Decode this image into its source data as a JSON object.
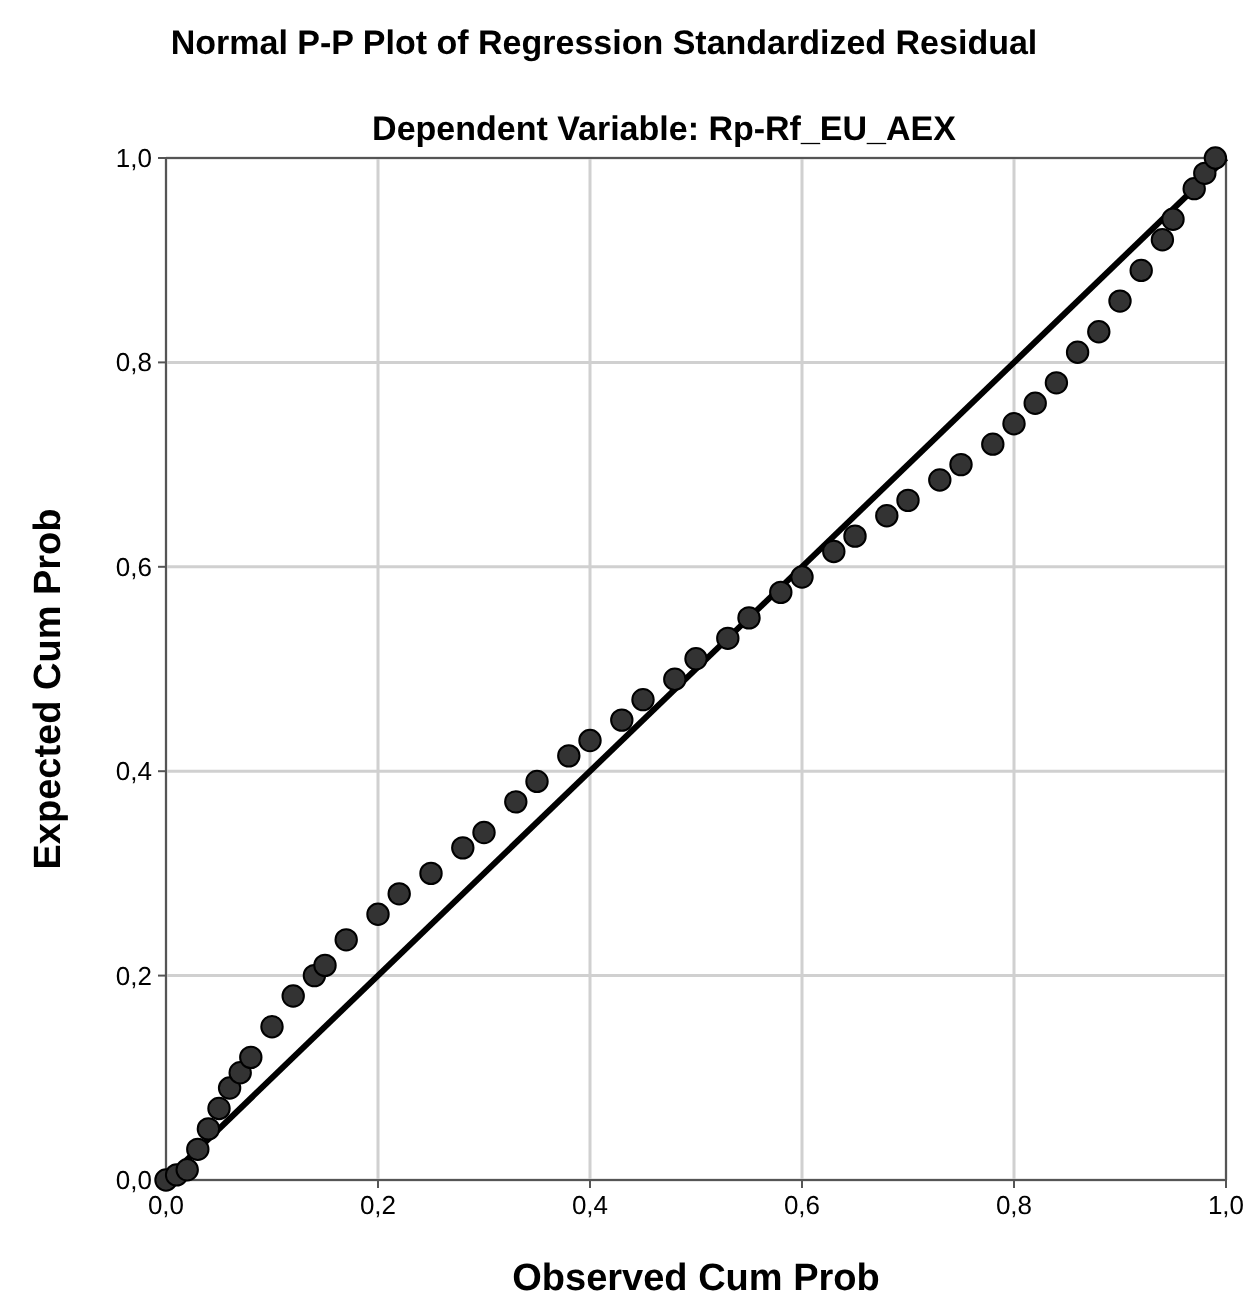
{
  "chart_data": {
    "type": "scatter",
    "title": "Normal P-P Plot of Regression Standardized Residual",
    "subtitle": "Dependent Variable: Rp-Rf_EU_AEX",
    "xlabel": "Observed Cum Prob",
    "ylabel": "Expected Cum Prob",
    "xlim": [
      0,
      1
    ],
    "ylim": [
      0,
      1
    ],
    "xticks": [
      {
        "value": 0,
        "label": "0,0"
      },
      {
        "value": 0.2,
        "label": "0,2"
      },
      {
        "value": 0.4,
        "label": "0,4"
      },
      {
        "value": 0.6,
        "label": "0,6"
      },
      {
        "value": 0.8,
        "label": "0,8"
      },
      {
        "value": 1,
        "label": "1,0"
      }
    ],
    "yticks": [
      {
        "value": 0,
        "label": "0,0"
      },
      {
        "value": 0.2,
        "label": "0,2"
      },
      {
        "value": 0.4,
        "label": "0,4"
      },
      {
        "value": 0.6,
        "label": "0,6"
      },
      {
        "value": 0.8,
        "label": "0,8"
      },
      {
        "value": 1,
        "label": "1,0"
      }
    ],
    "grid": true,
    "series": [
      {
        "type": "line",
        "marker": "none",
        "color": "#000000",
        "x": [
          0,
          1
        ],
        "values": [
          0,
          1
        ]
      },
      {
        "marker": "circle",
        "color": "#333333",
        "x": [
          0,
          0.01,
          0.02,
          0.03,
          0.04,
          0.05,
          0.06,
          0.07,
          0.08,
          0.1,
          0.12,
          0.14,
          0.15,
          0.17,
          0.2,
          0.22,
          0.25,
          0.28,
          0.3,
          0.33,
          0.35,
          0.38,
          0.4,
          0.43,
          0.45,
          0.48,
          0.5,
          0.53,
          0.55,
          0.58,
          0.6,
          0.63,
          0.65,
          0.68,
          0.7,
          0.73,
          0.75,
          0.78,
          0.8,
          0.82,
          0.84,
          0.86,
          0.88,
          0.9,
          0.92,
          0.94,
          0.95,
          0.97,
          0.98,
          0.99
        ],
        "values": [
          0,
          0.005,
          0.01,
          0.03,
          0.05,
          0.07,
          0.09,
          0.105,
          0.12,
          0.15,
          0.18,
          0.2,
          0.21,
          0.235,
          0.26,
          0.28,
          0.3,
          0.325,
          0.34,
          0.37,
          0.39,
          0.415,
          0.43,
          0.45,
          0.47,
          0.49,
          0.51,
          0.53,
          0.55,
          0.575,
          0.59,
          0.615,
          0.63,
          0.65,
          0.665,
          0.685,
          0.7,
          0.72,
          0.74,
          0.76,
          0.78,
          0.81,
          0.83,
          0.86,
          0.89,
          0.92,
          0.94,
          0.97,
          0.985,
          1.0
        ]
      }
    ]
  }
}
